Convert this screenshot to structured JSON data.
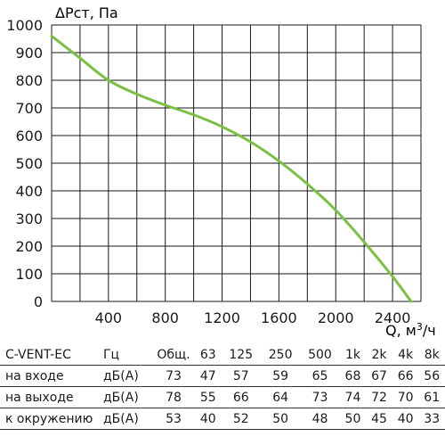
{
  "chart_data": {
    "type": "line",
    "ylabel": "ΔРст, Па",
    "xlabel": "Q, м³/ч",
    "xlim": [
      0,
      2600
    ],
    "ylim": [
      0,
      1000
    ],
    "xticks": [
      "400",
      "800",
      "1200",
      "1600",
      "2000",
      "2400"
    ],
    "yticks": [
      "0",
      "100",
      "200",
      "300",
      "400",
      "500",
      "600",
      "700",
      "800",
      "900",
      "1000"
    ],
    "grid": true,
    "series": [
      {
        "color": "#7ac143",
        "x": [
          0,
          200,
          400,
          600,
          800,
          1000,
          1200,
          1400,
          1600,
          1800,
          2000,
          2200,
          2400,
          2530
        ],
        "y": [
          960,
          880,
          800,
          750,
          710,
          675,
          632,
          577,
          508,
          425,
          330,
          215,
          90,
          0
        ]
      }
    ]
  },
  "table": {
    "header": [
      "C-VENT-EC",
      "Гц",
      "Общ.",
      "63",
      "125",
      "250",
      "500",
      "1k",
      "2k",
      "4k",
      "8k"
    ],
    "rows": [
      [
        "на входе",
        "дБ(А)",
        "73",
        "47",
        "57",
        "59",
        "65",
        "68",
        "67",
        "66",
        "56"
      ],
      [
        "на выходе",
        "дБ(А)",
        "78",
        "55",
        "66",
        "64",
        "73",
        "74",
        "72",
        "70",
        "61"
      ],
      [
        "к окружению",
        "дБ(А)",
        "53",
        "40",
        "52",
        "50",
        "48",
        "50",
        "45",
        "40",
        "33"
      ]
    ]
  }
}
